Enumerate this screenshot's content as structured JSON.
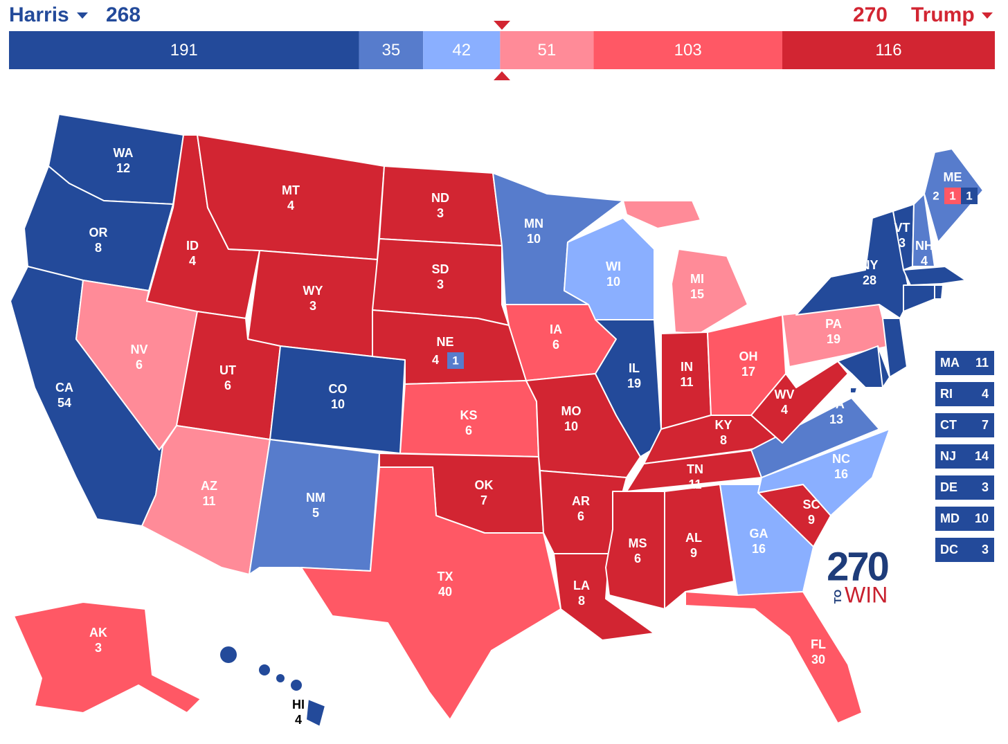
{
  "header": {
    "left_name": "Harris",
    "left_total": 268,
    "right_total": 270,
    "right_name": "Trump",
    "left_color": "#234a9a",
    "right_color": "#d22532"
  },
  "bar": [
    {
      "value": 191,
      "color": "#234a9a"
    },
    {
      "value": 35,
      "color": "#577ccc"
    },
    {
      "value": 42,
      "color": "#8aafff"
    },
    {
      "value": 51,
      "color": "#ff8b98"
    },
    {
      "value": 103,
      "color": "#ff5865"
    },
    {
      "value": 116,
      "color": "#d22532"
    }
  ],
  "states": [
    {
      "abbr": "WA",
      "ev": 12,
      "color": "#234a9a"
    },
    {
      "abbr": "OR",
      "ev": 8,
      "color": "#234a9a"
    },
    {
      "abbr": "CA",
      "ev": 54,
      "color": "#234a9a"
    },
    {
      "abbr": "NV",
      "ev": 6,
      "color": "#ff8b98"
    },
    {
      "abbr": "ID",
      "ev": 4,
      "color": "#d22532"
    },
    {
      "abbr": "MT",
      "ev": 4,
      "color": "#d22532"
    },
    {
      "abbr": "WY",
      "ev": 3,
      "color": "#d22532"
    },
    {
      "abbr": "UT",
      "ev": 6,
      "color": "#d22532"
    },
    {
      "abbr": "AZ",
      "ev": 11,
      "color": "#ff8b98"
    },
    {
      "abbr": "CO",
      "ev": 10,
      "color": "#234a9a"
    },
    {
      "abbr": "NM",
      "ev": 5,
      "color": "#577ccc"
    },
    {
      "abbr": "ND",
      "ev": 3,
      "color": "#d22532"
    },
    {
      "abbr": "SD",
      "ev": 3,
      "color": "#d22532"
    },
    {
      "abbr": "NE",
      "ev": 4,
      "color": "#d22532",
      "districts": [
        {
          "ev": 1,
          "color": "#577ccc"
        }
      ]
    },
    {
      "abbr": "KS",
      "ev": 6,
      "color": "#ff5865"
    },
    {
      "abbr": "OK",
      "ev": 7,
      "color": "#d22532"
    },
    {
      "abbr": "TX",
      "ev": 40,
      "color": "#ff5865"
    },
    {
      "abbr": "MN",
      "ev": 10,
      "color": "#577ccc"
    },
    {
      "abbr": "IA",
      "ev": 6,
      "color": "#ff5865"
    },
    {
      "abbr": "MO",
      "ev": 10,
      "color": "#d22532"
    },
    {
      "abbr": "AR",
      "ev": 6,
      "color": "#d22532"
    },
    {
      "abbr": "LA",
      "ev": 8,
      "color": "#d22532"
    },
    {
      "abbr": "WI",
      "ev": 10,
      "color": "#8aafff"
    },
    {
      "abbr": "IL",
      "ev": 19,
      "color": "#234a9a"
    },
    {
      "abbr": "MI",
      "ev": 15,
      "color": "#ff8b98"
    },
    {
      "abbr": "IN",
      "ev": 11,
      "color": "#d22532"
    },
    {
      "abbr": "OH",
      "ev": 17,
      "color": "#ff5865"
    },
    {
      "abbr": "KY",
      "ev": 8,
      "color": "#d22532"
    },
    {
      "abbr": "TN",
      "ev": 11,
      "color": "#d22532"
    },
    {
      "abbr": "MS",
      "ev": 6,
      "color": "#d22532"
    },
    {
      "abbr": "AL",
      "ev": 9,
      "color": "#d22532"
    },
    {
      "abbr": "GA",
      "ev": 16,
      "color": "#8aafff"
    },
    {
      "abbr": "FL",
      "ev": 30,
      "color": "#ff5865"
    },
    {
      "abbr": "SC",
      "ev": 9,
      "color": "#d22532"
    },
    {
      "abbr": "NC",
      "ev": 16,
      "color": "#8aafff"
    },
    {
      "abbr": "VA",
      "ev": 13,
      "color": "#577ccc"
    },
    {
      "abbr": "WV",
      "ev": 4,
      "color": "#d22532"
    },
    {
      "abbr": "PA",
      "ev": 19,
      "color": "#ff8b98"
    },
    {
      "abbr": "NY",
      "ev": 28,
      "color": "#234a9a"
    },
    {
      "abbr": "VT",
      "ev": 3,
      "color": "#234a9a"
    },
    {
      "abbr": "NH",
      "ev": 4,
      "color": "#577ccc"
    },
    {
      "abbr": "ME",
      "ev": 2,
      "color": "#577ccc",
      "districts": [
        {
          "ev": 1,
          "color": "#ff5865"
        },
        {
          "ev": 1,
          "color": "#234a9a"
        }
      ]
    },
    {
      "abbr": "AK",
      "ev": 3,
      "color": "#ff5865"
    },
    {
      "abbr": "HI",
      "ev": 4,
      "color": "#234a9a"
    }
  ],
  "small_states": [
    {
      "abbr": "MA",
      "ev": 11,
      "color": "#234a9a"
    },
    {
      "abbr": "RI",
      "ev": 4,
      "color": "#234a9a"
    },
    {
      "abbr": "CT",
      "ev": 7,
      "color": "#234a9a"
    },
    {
      "abbr": "NJ",
      "ev": 14,
      "color": "#234a9a"
    },
    {
      "abbr": "DE",
      "ev": 3,
      "color": "#234a9a"
    },
    {
      "abbr": "MD",
      "ev": 10,
      "color": "#234a9a"
    },
    {
      "abbr": "DC",
      "ev": 3,
      "color": "#234a9a"
    }
  ],
  "logo": {
    "number": "270",
    "to": "TO",
    "win": "WIN"
  }
}
